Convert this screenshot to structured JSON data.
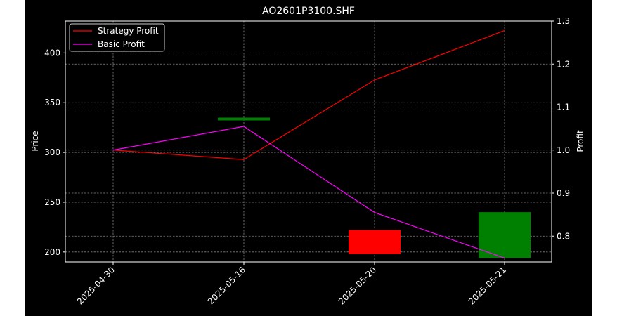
{
  "chart_data": {
    "type": "line",
    "title": "AO2601P3100.SHF",
    "x_categories": [
      "2025-04-30",
      "2025-05-16",
      "2025-05-20",
      "2025-05-21"
    ],
    "left_axis": {
      "label": "Price",
      "ylim": [
        190,
        432
      ],
      "ticks": [
        200,
        250,
        300,
        350,
        400
      ]
    },
    "right_axis": {
      "label": "Profit",
      "ylim": [
        0.74,
        1.3
      ],
      "ticks": [
        0.8,
        0.9,
        1.0,
        1.1,
        1.2,
        1.3
      ]
    },
    "grid": true,
    "legend_position": "top-left",
    "candles": [
      {
        "x": "2025-05-16",
        "open": 333,
        "close": 335,
        "color": "#008000"
      },
      {
        "x": "2025-05-20",
        "open": 222,
        "close": 198,
        "color": "#ff0000"
      },
      {
        "x": "2025-05-21",
        "open": 194,
        "close": 240,
        "color": "#008000"
      }
    ],
    "series": [
      {
        "name": "Strategy Profit",
        "color": "#ff0000",
        "axis": "right",
        "values": [
          1.0,
          0.978,
          1.163,
          1.278
        ]
      },
      {
        "name": "Basic Profit",
        "color": "#ff00ff",
        "axis": "right",
        "values": [
          1.0,
          1.055,
          0.855,
          0.749
        ]
      }
    ],
    "colors": {
      "figure_background": "#000000",
      "axes_foreground": "#ffffff",
      "grid": "#808080"
    }
  }
}
